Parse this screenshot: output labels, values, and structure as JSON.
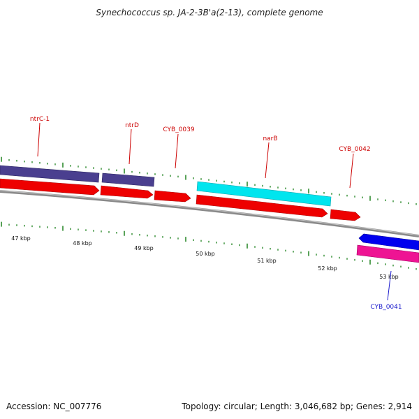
{
  "title": "Synechococcus sp. JA-2-3B'a(2-13), complete genome",
  "footer": {
    "accession": "Accession: NC_007776",
    "summary": "Topology: circular; Length: 3,046,682 bp; Genes: 2,914"
  },
  "colors": {
    "backbone": "#8a8a8a",
    "tick": "#2e8b2e",
    "label_fwd": "#cc0000",
    "label_rev": "#1a1acc",
    "cds_red": "#ee0000",
    "gene_slate": "#4a3f8f",
    "gene_cyan": "#00e5ee",
    "gene_blue": "#0000ee",
    "gene_pink": "#ee1493"
  },
  "kbp_labels": [
    "47 kbp",
    "48 kbp",
    "49 kbp",
    "50 kbp",
    "51 kbp",
    "52 kbp",
    "53 kbp"
  ],
  "gene_labels": {
    "ntrC1": "ntrC-1",
    "ntrD": "ntrD",
    "cyb0039": "CYB_0039",
    "narB": "narB",
    "cyb0042": "CYB_0042",
    "cyb0041": "CYB_0041"
  }
}
